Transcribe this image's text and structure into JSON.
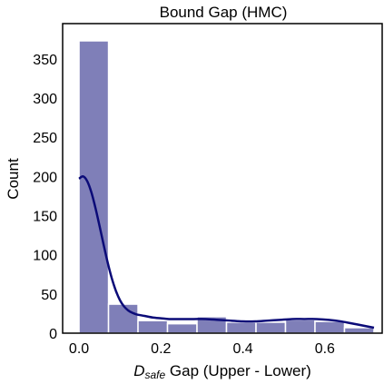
{
  "chart_data": {
    "type": "bar",
    "title": "Bound Gap (HMC)",
    "xlabel_math": "D",
    "xlabel_sub": "safe",
    "xlabel_rest": " Gap (Upper - Lower)",
    "ylabel": "Count",
    "xlim": [
      -0.04,
      0.74
    ],
    "ylim": [
      0,
      395
    ],
    "xticks": [
      "0.0",
      "0.2",
      "0.4",
      "0.6"
    ],
    "xtick_values": [
      0.0,
      0.2,
      0.4,
      0.6
    ],
    "yticks": [
      "0",
      "50",
      "100",
      "150",
      "200",
      "250",
      "300",
      "350"
    ],
    "ytick_values": [
      0,
      50,
      100,
      150,
      200,
      250,
      300,
      350
    ],
    "bins": [
      {
        "x0": 0.0,
        "x1": 0.072,
        "count": 373
      },
      {
        "x0": 0.072,
        "x1": 0.144,
        "count": 37
      },
      {
        "x0": 0.144,
        "x1": 0.216,
        "count": 16
      },
      {
        "x0": 0.216,
        "x1": 0.288,
        "count": 12
      },
      {
        "x0": 0.288,
        "x1": 0.36,
        "count": 21
      },
      {
        "x0": 0.36,
        "x1": 0.432,
        "count": 14
      },
      {
        "x0": 0.432,
        "x1": 0.504,
        "count": 14
      },
      {
        "x0": 0.504,
        "x1": 0.576,
        "count": 17
      },
      {
        "x0": 0.576,
        "x1": 0.648,
        "count": 15
      },
      {
        "x0": 0.648,
        "x1": 0.72,
        "count": 7
      }
    ],
    "kde": {
      "x": [
        0.0,
        0.01,
        0.02,
        0.03,
        0.04,
        0.05,
        0.06,
        0.07,
        0.08,
        0.09,
        0.1,
        0.11,
        0.12,
        0.13,
        0.14,
        0.16,
        0.18,
        0.2,
        0.22,
        0.25,
        0.28,
        0.31,
        0.34,
        0.37,
        0.4,
        0.43,
        0.46,
        0.49,
        0.52,
        0.55,
        0.58,
        0.61,
        0.64,
        0.67,
        0.7,
        0.72
      ],
      "y": [
        197,
        200,
        194,
        180,
        160,
        137,
        113,
        90,
        70,
        54,
        42,
        34,
        29,
        26,
        24,
        22,
        20,
        19,
        18,
        18,
        18,
        18,
        17,
        16,
        15,
        15,
        16,
        17,
        18,
        18,
        18,
        17,
        15,
        12,
        9,
        7
      ]
    },
    "colors": {
      "bar_fill": "#7f7fb8",
      "bar_edge": "#ffffff",
      "kde_line": "#0b0b78",
      "frame": "#000000"
    },
    "grid": false
  }
}
